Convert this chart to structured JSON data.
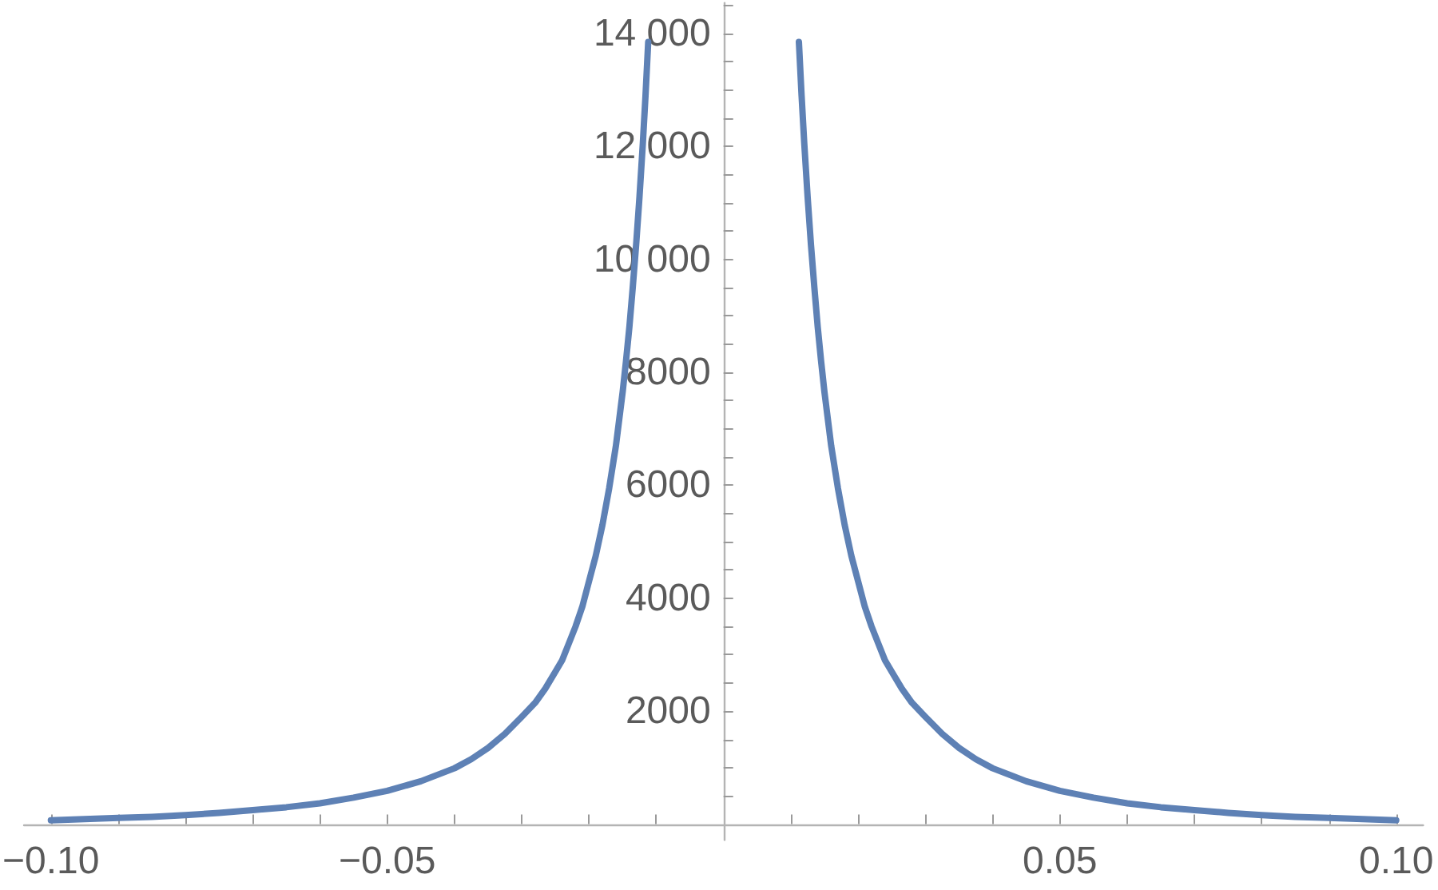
{
  "chart_data": {
    "type": "line",
    "marker": "none",
    "line_style": "solid",
    "xlim": [
      -0.104,
      0.104
    ],
    "ylim": [
      -280,
      14540
    ],
    "xticks": [
      {
        "value": -0.1,
        "label": "−0.10"
      },
      {
        "value": -0.09,
        "label": null
      },
      {
        "value": -0.08,
        "label": null
      },
      {
        "value": -0.07,
        "label": null
      },
      {
        "value": -0.06,
        "label": null
      },
      {
        "value": -0.05,
        "label": "−0.05"
      },
      {
        "value": -0.04,
        "label": null
      },
      {
        "value": -0.03,
        "label": null
      },
      {
        "value": -0.02,
        "label": null
      },
      {
        "value": -0.01,
        "label": null
      },
      {
        "value": 0.01,
        "label": null
      },
      {
        "value": 0.02,
        "label": null
      },
      {
        "value": 0.03,
        "label": null
      },
      {
        "value": 0.04,
        "label": null
      },
      {
        "value": 0.05,
        "label": "0.05"
      },
      {
        "value": 0.06,
        "label": null
      },
      {
        "value": 0.07,
        "label": null
      },
      {
        "value": 0.08,
        "label": null
      },
      {
        "value": 0.09,
        "label": null
      },
      {
        "value": 0.1,
        "label": "0.10"
      }
    ],
    "yticks": [
      {
        "value": 500,
        "label": null
      },
      {
        "value": 1000,
        "label": null
      },
      {
        "value": 1500,
        "label": null
      },
      2000,
      {
        "value": 2500,
        "label": null
      },
      {
        "value": 3000,
        "label": null
      },
      {
        "value": 3500,
        "label": null
      },
      4000,
      {
        "value": 4500,
        "label": null
      },
      {
        "value": 5000,
        "label": null
      },
      {
        "value": 5500,
        "label": null
      },
      6000,
      {
        "value": 6500,
        "label": null
      },
      {
        "value": 7000,
        "label": null
      },
      {
        "value": 7500,
        "label": null
      },
      8000,
      {
        "value": 8500,
        "label": null
      },
      {
        "value": 9000,
        "label": null
      },
      {
        "value": 9500,
        "label": null
      },
      {
        "value": 10000,
        "label": "10 000"
      },
      {
        "value": 10500,
        "label": null
      },
      {
        "value": 11000,
        "label": null
      },
      {
        "value": 11500,
        "label": null
      },
      {
        "value": 12000,
        "label": "12 000"
      },
      {
        "value": 12500,
        "label": null
      },
      {
        "value": 13000,
        "label": null
      },
      {
        "value": 13500,
        "label": null
      },
      {
        "value": 14000,
        "label": "14 000"
      },
      {
        "value": 14500,
        "label": null
      }
    ],
    "series": [
      {
        "color": "#5e81b5",
        "x": [
          -0.1,
          -0.095,
          -0.09,
          -0.085,
          -0.08,
          -0.075,
          -0.07,
          -0.065,
          -0.06,
          -0.055,
          -0.05,
          -0.045,
          -0.04,
          -0.0375,
          -0.035,
          -0.0325,
          -0.03,
          -0.028,
          -0.0265,
          -0.025,
          -0.024,
          -0.023,
          -0.022,
          -0.021,
          -0.02,
          -0.019,
          -0.018,
          -0.017,
          -0.016,
          -0.015,
          -0.0145,
          -0.014,
          -0.0135,
          -0.013,
          -0.0125,
          -0.012,
          -0.0116,
          -0.0112
        ],
        "values": [
          70,
          90,
          110,
          130,
          160,
          200,
          250,
          300,
          370,
          470,
          590,
          760,
          990,
          1150,
          1350,
          1600,
          1900,
          2150,
          2400,
          2700,
          2900,
          3200,
          3500,
          3850,
          4300,
          4750,
          5300,
          5950,
          6700,
          7650,
          8200,
          8800,
          9500,
          10250,
          11100,
          12050,
          12900,
          13850
        ]
      },
      {
        "color": "#5e81b5",
        "x": [
          0.0112,
          0.0116,
          0.012,
          0.0125,
          0.013,
          0.0135,
          0.014,
          0.0145,
          0.015,
          0.016,
          0.017,
          0.018,
          0.019,
          0.02,
          0.021,
          0.022,
          0.023,
          0.024,
          0.025,
          0.0265,
          0.028,
          0.03,
          0.0325,
          0.035,
          0.0375,
          0.04,
          0.045,
          0.05,
          0.055,
          0.06,
          0.065,
          0.07,
          0.075,
          0.08,
          0.085,
          0.09,
          0.095,
          0.1
        ],
        "values": [
          13850,
          12900,
          12050,
          11100,
          10250,
          9500,
          8800,
          8200,
          7650,
          6700,
          5950,
          5300,
          4750,
          4300,
          3850,
          3500,
          3200,
          2900,
          2700,
          2400,
          2150,
          1900,
          1600,
          1350,
          1150,
          990,
          760,
          590,
          470,
          370,
          300,
          250,
          200,
          160,
          130,
          110,
          90,
          70
        ]
      }
    ]
  }
}
